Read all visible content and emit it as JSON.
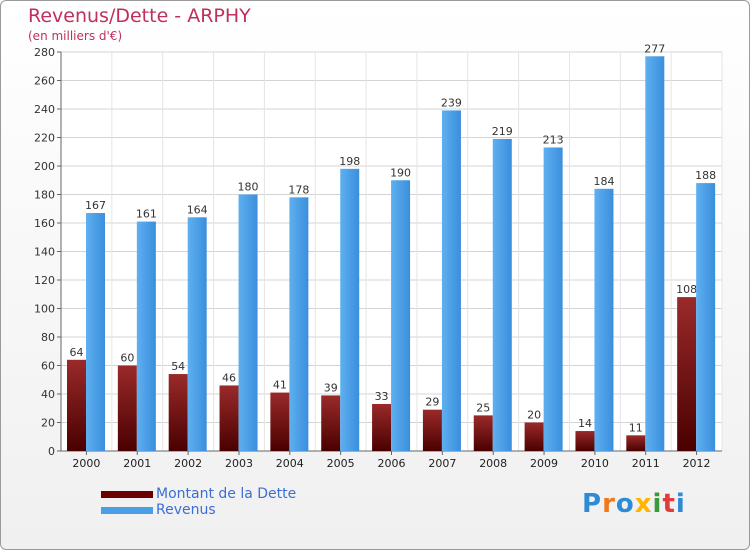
{
  "header": {
    "title": "Revenus/Dette - ARPHY",
    "subtitle": "(en milliers d'€)"
  },
  "legend": {
    "items": [
      {
        "label": "Montant de la Dette",
        "color": "#6b0000"
      },
      {
        "label": "Revenus",
        "color": "#4a9ee6"
      }
    ]
  },
  "logo": {
    "text": "Proxiti",
    "letters": [
      {
        "ch": "P",
        "color": "#2e8bd6"
      },
      {
        "ch": "r",
        "color": "#f07a1a"
      },
      {
        "ch": "o",
        "color": "#2e8bd6"
      },
      {
        "ch": "x",
        "color": "#ffb400"
      },
      {
        "ch": "i",
        "color": "#3a9a3a"
      },
      {
        "ch": "t",
        "color": "#e23b3b"
      },
      {
        "ch": "i",
        "color": "#2e8bd6"
      }
    ]
  },
  "chart_data": {
    "type": "bar",
    "title": "Revenus/Dette - ARPHY",
    "subtitle": "(en milliers d'€)",
    "xlabel": "",
    "ylabel": "",
    "categories": [
      "2000",
      "2001",
      "2002",
      "2003",
      "2004",
      "2005",
      "2006",
      "2007",
      "2008",
      "2009",
      "2010",
      "2011",
      "2012"
    ],
    "series": [
      {
        "name": "Montant de la Dette",
        "color": "#6b0000",
        "values": [
          64,
          60,
          54,
          46,
          41,
          39,
          33,
          29,
          25,
          20,
          14,
          11,
          108
        ]
      },
      {
        "name": "Revenus",
        "color": "#4a9ee6",
        "values": [
          167,
          161,
          164,
          180,
          178,
          198,
          190,
          239,
          219,
          213,
          184,
          277,
          188
        ]
      }
    ],
    "ylim": [
      0,
      280
    ],
    "yticks": [
      0,
      20,
      40,
      60,
      80,
      100,
      120,
      140,
      160,
      180,
      200,
      220,
      240,
      260,
      280
    ],
    "grid": true,
    "legend_position": "bottom-left"
  }
}
